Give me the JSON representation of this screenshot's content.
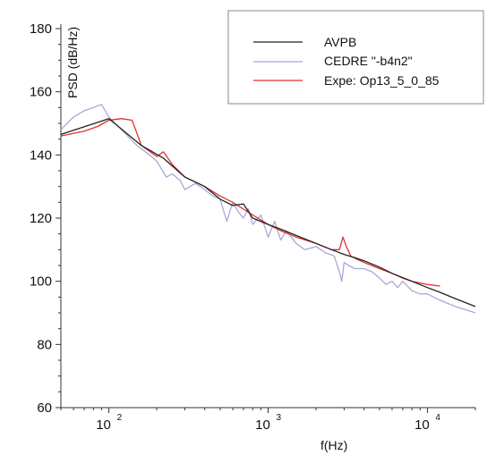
{
  "chart_data": {
    "type": "line",
    "title": "",
    "xlabel": "f(Hz)",
    "ylabel": "PSD (dB/Hz)",
    "x_scale": "log",
    "xlim": [
      50,
      20000
    ],
    "ylim": [
      60,
      180
    ],
    "x_ticks": [
      {
        "value": 100,
        "label": "10",
        "exp": "2"
      },
      {
        "value": 1000,
        "label": "10",
        "exp": "3"
      },
      {
        "value": 10000,
        "label": "10",
        "exp": "4"
      }
    ],
    "y_ticks": [
      60,
      80,
      100,
      120,
      140,
      160,
      180
    ],
    "grid": false,
    "legend_position": "top-right",
    "series": [
      {
        "name": "AVPB",
        "color": "#222222",
        "x": [
          50,
          100,
          160,
          220,
          300,
          400,
          500,
          600,
          700,
          800,
          1000,
          1200,
          1500,
          2000,
          2500,
          3000,
          3500,
          4000,
          5000,
          6000,
          8000,
          10000,
          12000,
          15000,
          20000
        ],
        "y": [
          146.5,
          151.5,
          143,
          139,
          133,
          130,
          126,
          124,
          124.5,
          120,
          118,
          116.5,
          114.5,
          112,
          110,
          108.5,
          107.5,
          106.5,
          104.5,
          102.5,
          100,
          98,
          96.5,
          94.5,
          92
        ]
      },
      {
        "name": "CEDRE \"-b4n2\"",
        "color": "#a8a8d8",
        "x": [
          50,
          60,
          70,
          80,
          90,
          100,
          120,
          150,
          180,
          200,
          230,
          250,
          280,
          300,
          350,
          400,
          450,
          500,
          550,
          600,
          650,
          700,
          750,
          800,
          900,
          1000,
          1100,
          1200,
          1300,
          1500,
          1700,
          2000,
          2300,
          2600,
          2800,
          2900,
          3000,
          3200,
          3500,
          4000,
          4500,
          5000,
          5500,
          6000,
          6500,
          7000,
          8000,
          9000,
          10000,
          12000,
          15000,
          20000
        ],
        "y": [
          148,
          152,
          154,
          155,
          156,
          152,
          148,
          143,
          140,
          138,
          133,
          134,
          132,
          129,
          131,
          129,
          127,
          126,
          119,
          125,
          122,
          120,
          123,
          118,
          121,
          114,
          119,
          113,
          116,
          112,
          110,
          111,
          109,
          108,
          103,
          100,
          106,
          105,
          104,
          104,
          103,
          101,
          99,
          100,
          98,
          100,
          97,
          96,
          96,
          94,
          92,
          90
        ]
      },
      {
        "name": "Expe: Op13_5_0_85",
        "color": "#e23030",
        "x": [
          50,
          70,
          85,
          100,
          120,
          140,
          160,
          200,
          220,
          250,
          300,
          400,
          500,
          600,
          800,
          1000,
          1200,
          1500,
          2000,
          2500,
          2800,
          2950,
          3100,
          3300,
          3600,
          4000,
          5000,
          6000,
          7000,
          8000,
          10000,
          12000
        ],
        "y": [
          146,
          147.5,
          149,
          151,
          151.5,
          151,
          143,
          139.5,
          141,
          137,
          133,
          130,
          127,
          125,
          121,
          118,
          116,
          114,
          112,
          110,
          110,
          114,
          111,
          108,
          107,
          106,
          104,
          102.5,
          101,
          100,
          99,
          98.5
        ]
      }
    ]
  }
}
